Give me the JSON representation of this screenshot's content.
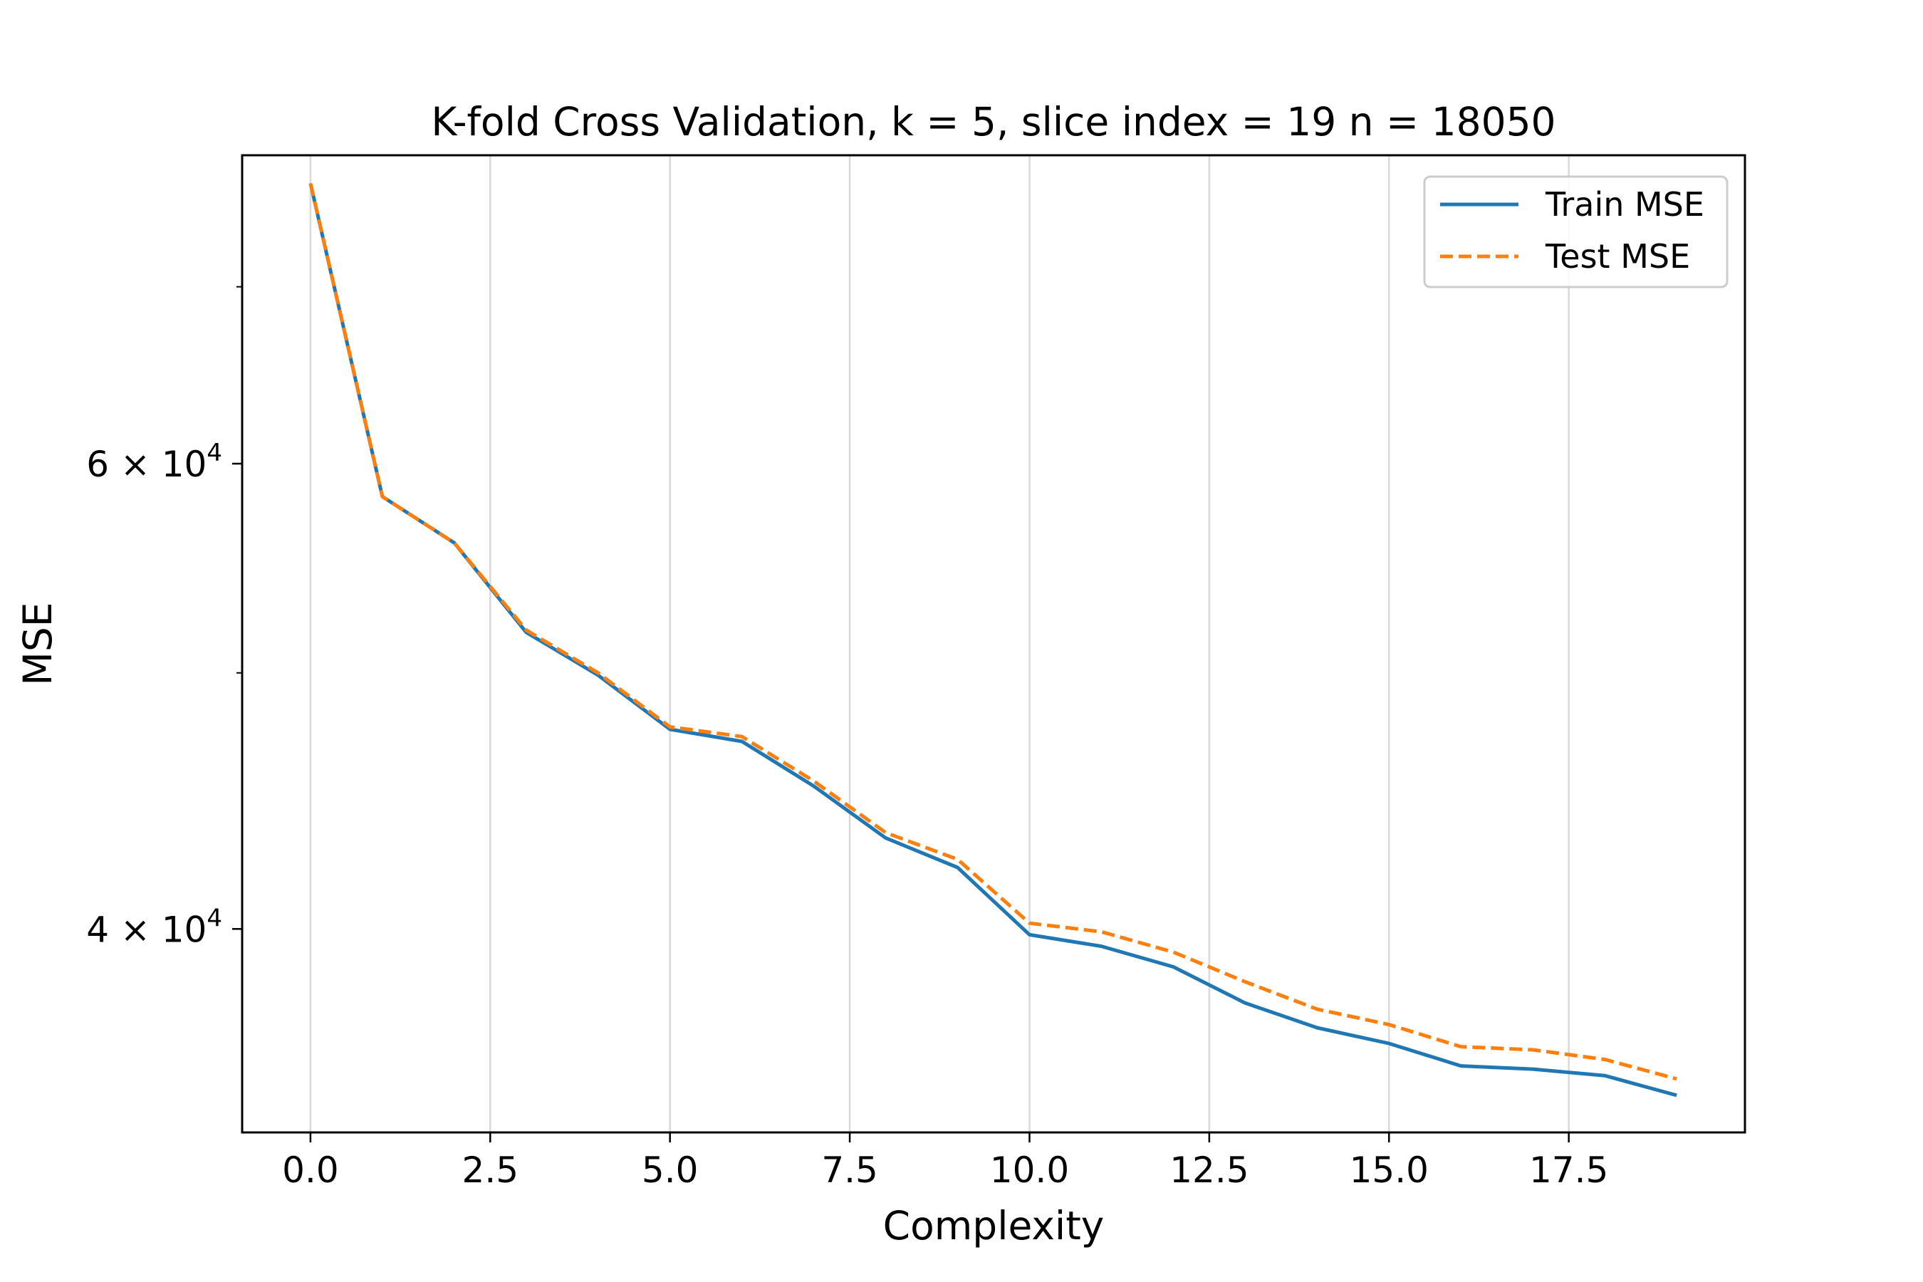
{
  "chart_data": {
    "type": "line",
    "title": "K-fold Cross Validation, k = 5, slice index = 19 n = 18050",
    "xlabel": "Complexity",
    "ylabel": "MSE",
    "xlim": [
      -0.95,
      19.95
    ],
    "ylim": [
      33500,
      78500
    ],
    "yscale": "log",
    "grid": "x-only",
    "legend_position": "top-right",
    "x_ticks": [
      "0.0",
      "2.5",
      "5.0",
      "7.5",
      "10.0",
      "12.5",
      "15.0",
      "17.5"
    ],
    "x_tick_values": [
      0,
      2.5,
      5,
      7.5,
      10,
      12.5,
      15,
      17.5
    ],
    "y_ticks": [
      {
        "value": 40000,
        "mantissa": "4",
        "exponent": "4"
      },
      {
        "value": 60000,
        "mantissa": "6",
        "exponent": "4"
      }
    ],
    "y_minor_ticks": [
      50000,
      70000
    ],
    "x": [
      0,
      1,
      2,
      3,
      4,
      5,
      6,
      7,
      8,
      9,
      10,
      11,
      12,
      13,
      14,
      15,
      16,
      17,
      18,
      19
    ],
    "series": [
      {
        "name": "Train MSE",
        "color": "#1f77b4",
        "dash": "solid",
        "values": [
          76600,
          58300,
          56000,
          51800,
          49900,
          47600,
          47100,
          45300,
          43300,
          42200,
          39800,
          39400,
          38700,
          37500,
          36700,
          36200,
          35500,
          35400,
          35200,
          34600
        ]
      },
      {
        "name": "Test MSE",
        "color": "#ff7f0e",
        "dash": "dashed",
        "values": [
          76600,
          58300,
          56000,
          51900,
          50000,
          47700,
          47300,
          45500,
          43500,
          42500,
          40200,
          39900,
          39200,
          38200,
          37300,
          36800,
          36100,
          36000,
          35700,
          35100
        ]
      }
    ]
  }
}
